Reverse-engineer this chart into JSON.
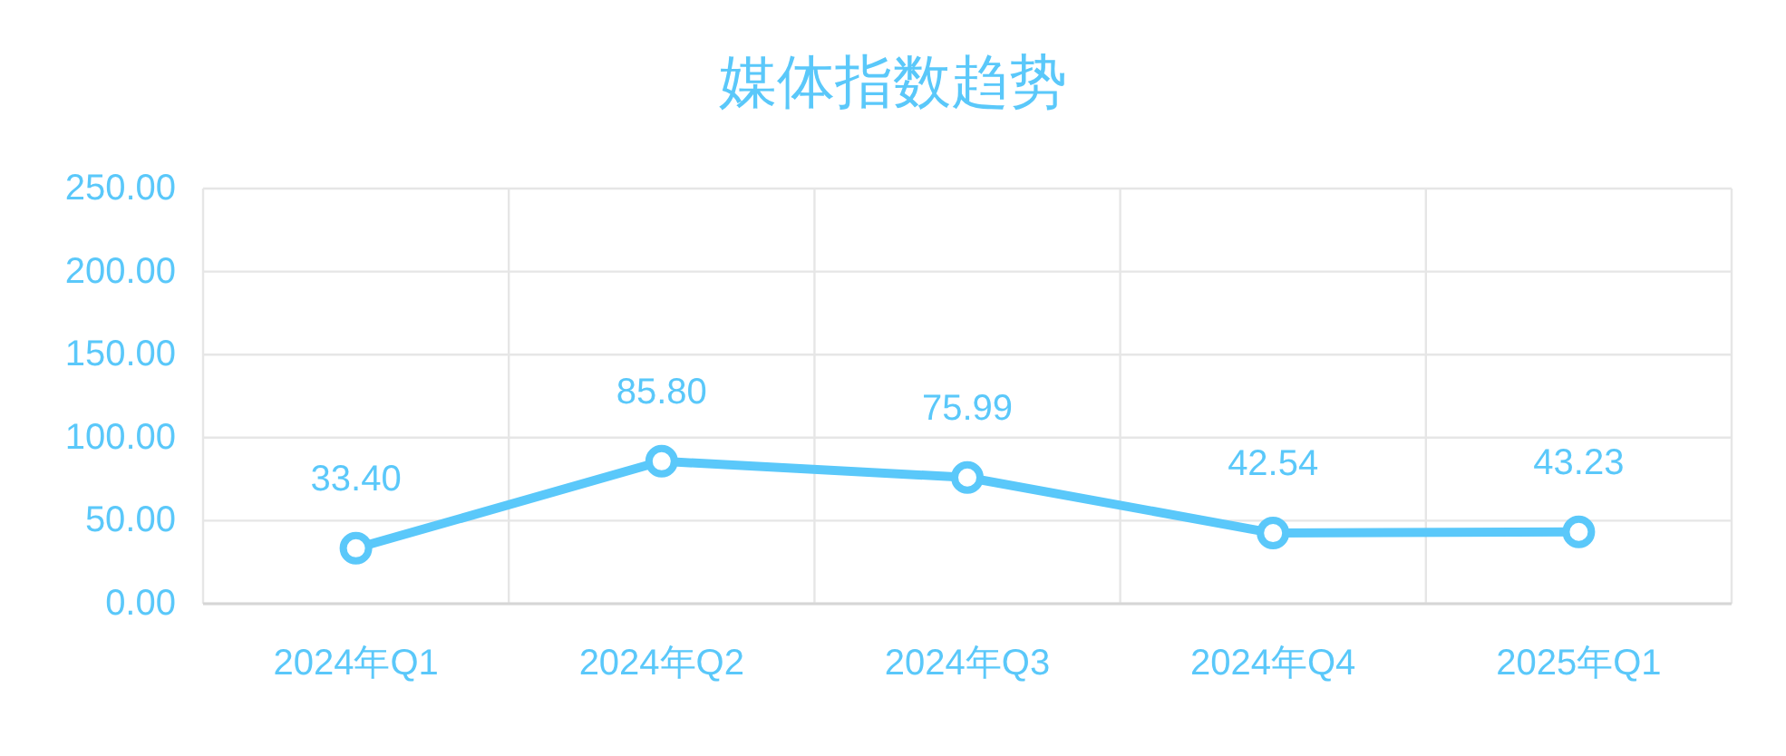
{
  "chart_data": {
    "type": "line",
    "title": "媒体指数趋势",
    "categories": [
      "2024年Q1",
      "2024年Q2",
      "2024年Q3",
      "2024年Q4",
      "2025年Q1"
    ],
    "series": [
      {
        "color": "#5ac8fa",
        "values": [
          33.4,
          85.8,
          75.99,
          42.54,
          43.23
        ],
        "value_labels": [
          "33.40",
          "85.80",
          "75.99",
          "42.54",
          "43.23"
        ]
      }
    ],
    "ylim": [
      0,
      250
    ],
    "yticks": [
      {
        "value": 0,
        "label": "0.00"
      },
      {
        "value": 50,
        "label": "50.00"
      },
      {
        "value": 100,
        "label": "100.00"
      },
      {
        "value": 150,
        "label": "150.00"
      },
      {
        "value": 200,
        "label": "200.00"
      },
      {
        "value": 250,
        "label": "250.00"
      }
    ],
    "grid": true,
    "marker": "circle",
    "line_style": "solid"
  }
}
